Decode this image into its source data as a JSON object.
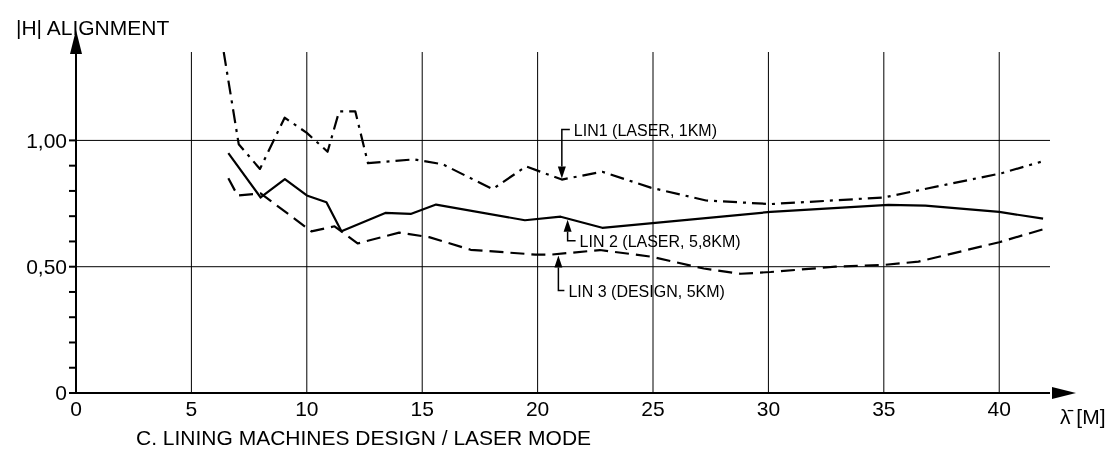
{
  "chart_data": {
    "type": "line",
    "ylabel": "|H| ALIGNMENT",
    "xlabel": "λ̄ [M]",
    "annotations": [
      "C. LINING MACHINES DESIGN / LASER MODE",
      {
        "text": "LIN1 (LASER, 1KM)",
        "x": 21.05,
        "y": 0.845
      },
      {
        "text": "LIN 2 (LASER, 5,8KM)",
        "x": 21.3,
        "y": 0.69
      },
      {
        "text": "LIN 3 (DESIGN, 5KM)",
        "x": 20.9,
        "y": 0.548
      }
    ],
    "xlim": [
      0,
      42.2
    ],
    "xticks": [
      0,
      5,
      10,
      15,
      20,
      25,
      30,
      35,
      40
    ],
    "ylim": [
      0,
      1.35
    ],
    "yticks": [
      0,
      {
        "value": 0.1,
        "label": null
      },
      {
        "value": 0.2,
        "label": null
      },
      {
        "value": 0.3,
        "label": null
      },
      {
        "value": 0.4,
        "label": null
      },
      {
        "value": 0.5,
        "label": "0,50"
      },
      {
        "value": 0.6,
        "label": null
      },
      {
        "value": 0.7,
        "label": null
      },
      {
        "value": 0.8,
        "label": null
      },
      {
        "value": 0.9,
        "label": null
      },
      {
        "value": 1.0,
        "label": "1,00"
      }
    ],
    "grid": true,
    "legend": false,
    "marker": "none",
    "series": [
      {
        "color": "#000000",
        "line_style": "dashdot",
        "x": [
          6.4,
          7.05,
          7.97,
          9.04,
          10.0,
          10.9,
          11.4,
          12.1,
          12.65,
          14.65,
          15.9,
          18.05,
          19.5,
          21.05,
          22.8,
          24.9,
          27.3,
          30.1,
          35.0,
          37.7,
          40.1,
          41.8
        ],
        "values": [
          1.35,
          0.985,
          0.887,
          1.09,
          1.03,
          0.955,
          1.115,
          1.115,
          0.91,
          0.925,
          0.905,
          0.807,
          0.897,
          0.845,
          0.876,
          0.813,
          0.762,
          0.748,
          0.774,
          0.825,
          0.87,
          0.915
        ]
      },
      {
        "color": "#000000",
        "line_style": "solid",
        "x": [
          6.6,
          8.0,
          9.05,
          10.0,
          10.85,
          11.5,
          13.4,
          14.5,
          15.6,
          19.45,
          21.0,
          22.8,
          30.1,
          35.2,
          36.8,
          40.0,
          41.9
        ],
        "values": [
          0.95,
          0.774,
          0.847,
          0.782,
          0.755,
          0.64,
          0.713,
          0.709,
          0.746,
          0.684,
          0.698,
          0.654,
          0.717,
          0.745,
          0.742,
          0.717,
          0.69
        ]
      },
      {
        "color": "#000000",
        "line_style": "dashed",
        "x": [
          6.6,
          7.0,
          8.0,
          10.2,
          11.2,
          12.2,
          14.0,
          15.3,
          17.1,
          19.9,
          20.6,
          22.7,
          24.9,
          27.2,
          28.8,
          30.1,
          32.9,
          35.0,
          36.5,
          40.0,
          41.9
        ],
        "values": [
          0.85,
          0.782,
          0.79,
          0.64,
          0.66,
          0.592,
          0.635,
          0.617,
          0.567,
          0.548,
          0.548,
          0.566,
          0.54,
          0.493,
          0.472,
          0.479,
          0.5,
          0.507,
          0.52,
          0.597,
          0.648
        ]
      }
    ]
  }
}
